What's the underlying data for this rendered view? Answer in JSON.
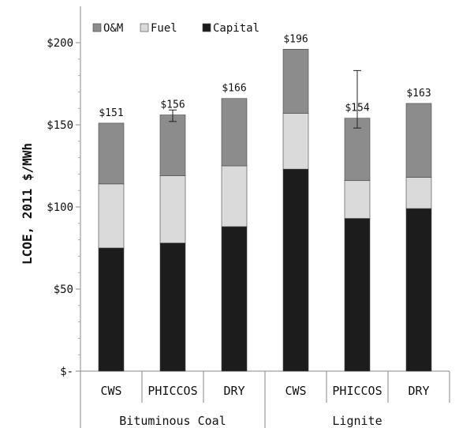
{
  "chart_data": {
    "type": "bar",
    "stacked": true,
    "ylabel": "LCOE, 2011 $/MWh",
    "ylim": [
      0,
      225
    ],
    "yticks": [
      0,
      50,
      100,
      150,
      200
    ],
    "ytick_labels": [
      "$-",
      "$50",
      "$100",
      "$150",
      "$200"
    ],
    "groups": [
      {
        "label": "Bituminous Coal",
        "categories": [
          "CWS",
          "PHICCOS",
          "DRY"
        ]
      },
      {
        "label": "Lignite",
        "categories": [
          "CWS",
          "PHICCOS",
          "DRY"
        ]
      }
    ],
    "categories": [
      "CWS",
      "PHICCOS",
      "DRY",
      "CWS",
      "PHICCOS",
      "DRY"
    ],
    "series": [
      {
        "name": "Capital",
        "color": "#1c1c1c",
        "values": [
          75,
          78,
          88,
          123,
          93,
          99
        ]
      },
      {
        "name": "Fuel",
        "color": "#dadada",
        "values": [
          39,
          41,
          37,
          34,
          23,
          19
        ]
      },
      {
        "name": "O&M",
        "color": "#8c8c8c",
        "values": [
          37,
          37,
          41,
          39,
          38,
          45
        ]
      }
    ],
    "totals": [
      151,
      156,
      166,
      196,
      154,
      163
    ],
    "total_labels": [
      "$151",
      "$156",
      "$166",
      "$196",
      "$154",
      "$163"
    ],
    "error_bars": [
      null,
      {
        "low": 152,
        "high": 159
      },
      null,
      null,
      {
        "low": 148,
        "high": 183
      },
      null
    ],
    "legend_order": [
      "O&M",
      "Fuel",
      "Capital"
    ],
    "legend": "top-left",
    "grid": false
  }
}
